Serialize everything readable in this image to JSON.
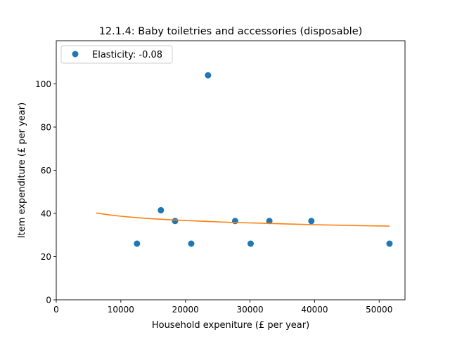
{
  "chart_data": {
    "type": "scatter",
    "title": "12.1.4: Baby toiletries and accessories (disposable)",
    "xlabel": "Household expeniture (£ per year)",
    "ylabel": "Item expenditure (£ per year)",
    "xlim": [
      0,
      54000
    ],
    "ylim": [
      0,
      120
    ],
    "xticks": [
      0,
      10000,
      20000,
      30000,
      40000,
      50000
    ],
    "yticks": [
      0,
      20,
      40,
      60,
      80,
      100
    ],
    "grid": false,
    "legend_position": "top-left",
    "series": [
      {
        "name": "Elasticity: -0.08",
        "type": "scatter",
        "color": "#1f77b4",
        "x": [
          12500,
          16200,
          18400,
          20900,
          23500,
          27700,
          30100,
          33000,
          39500,
          51600
        ],
        "y": [
          26,
          41.5,
          36.5,
          26,
          104,
          36.5,
          26,
          36.5,
          36.5,
          26
        ]
      },
      {
        "type": "line",
        "color": "#ff7f0e",
        "x": [
          6200,
          8000,
          10000,
          12500,
          15000,
          17500,
          20000,
          22500,
          25000,
          27500,
          30000,
          32500,
          35000,
          37500,
          40000,
          42500,
          45000,
          47500,
          50000,
          51600
        ],
        "y": [
          40.2,
          39.4,
          38.7,
          38.0,
          37.5,
          37.1,
          36.7,
          36.4,
          36.1,
          35.8,
          35.6,
          35.4,
          35.2,
          35.0,
          34.8,
          34.6,
          34.5,
          34.3,
          34.2,
          34.1
        ]
      }
    ]
  }
}
